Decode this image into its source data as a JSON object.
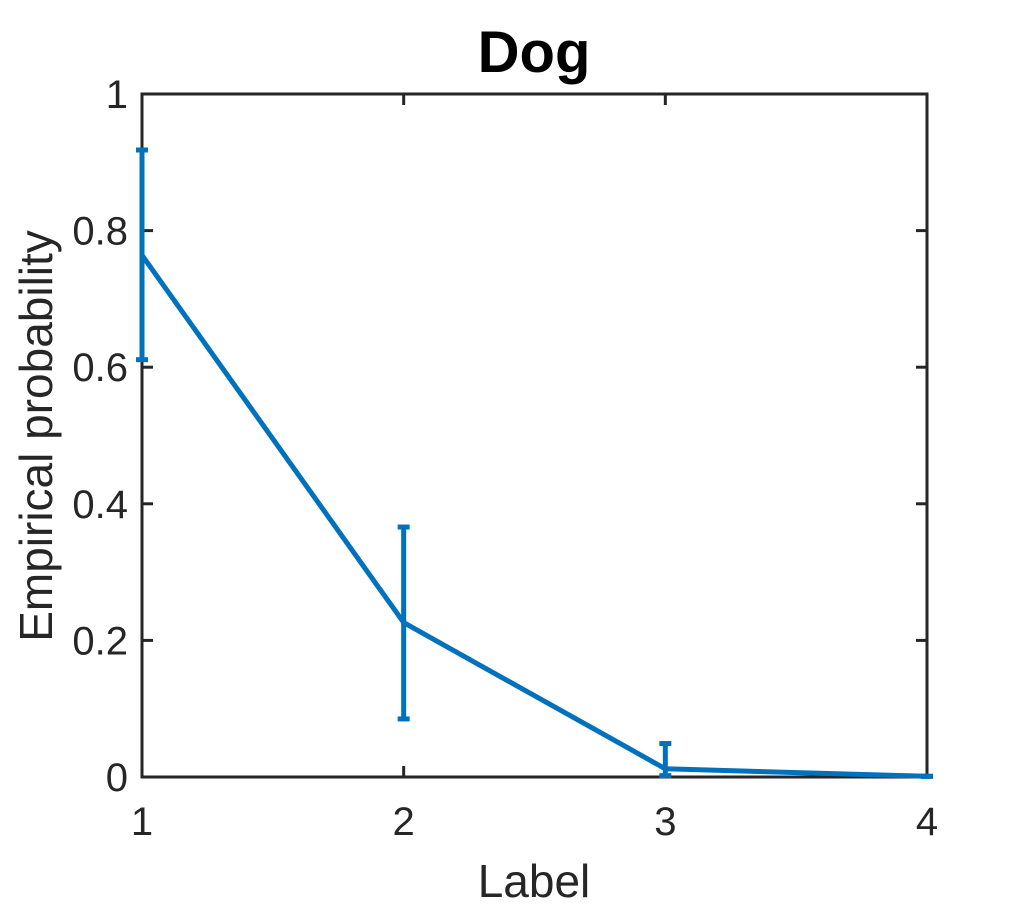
{
  "chart_data": {
    "type": "line",
    "title": "Dog",
    "xlabel": "Label",
    "ylabel": "Empirical probability",
    "xlim": [
      1,
      4
    ],
    "ylim": [
      0,
      1
    ],
    "xticks": [
      "1",
      "2",
      "3",
      "4"
    ],
    "yticks": [
      "0",
      "0.2",
      "0.4",
      "0.6",
      "0.8",
      "1"
    ],
    "grid": false,
    "line_color": "#0072BD",
    "series": [
      {
        "x": [
          1,
          2,
          3,
          4
        ],
        "y": [
          0.764,
          0.226,
          0.012,
          0.001
        ],
        "err_low": [
          0.611,
          0.085,
          0.002,
          0.001
        ],
        "err_high": [
          0.918,
          0.366,
          0.049,
          0.001
        ]
      }
    ]
  }
}
